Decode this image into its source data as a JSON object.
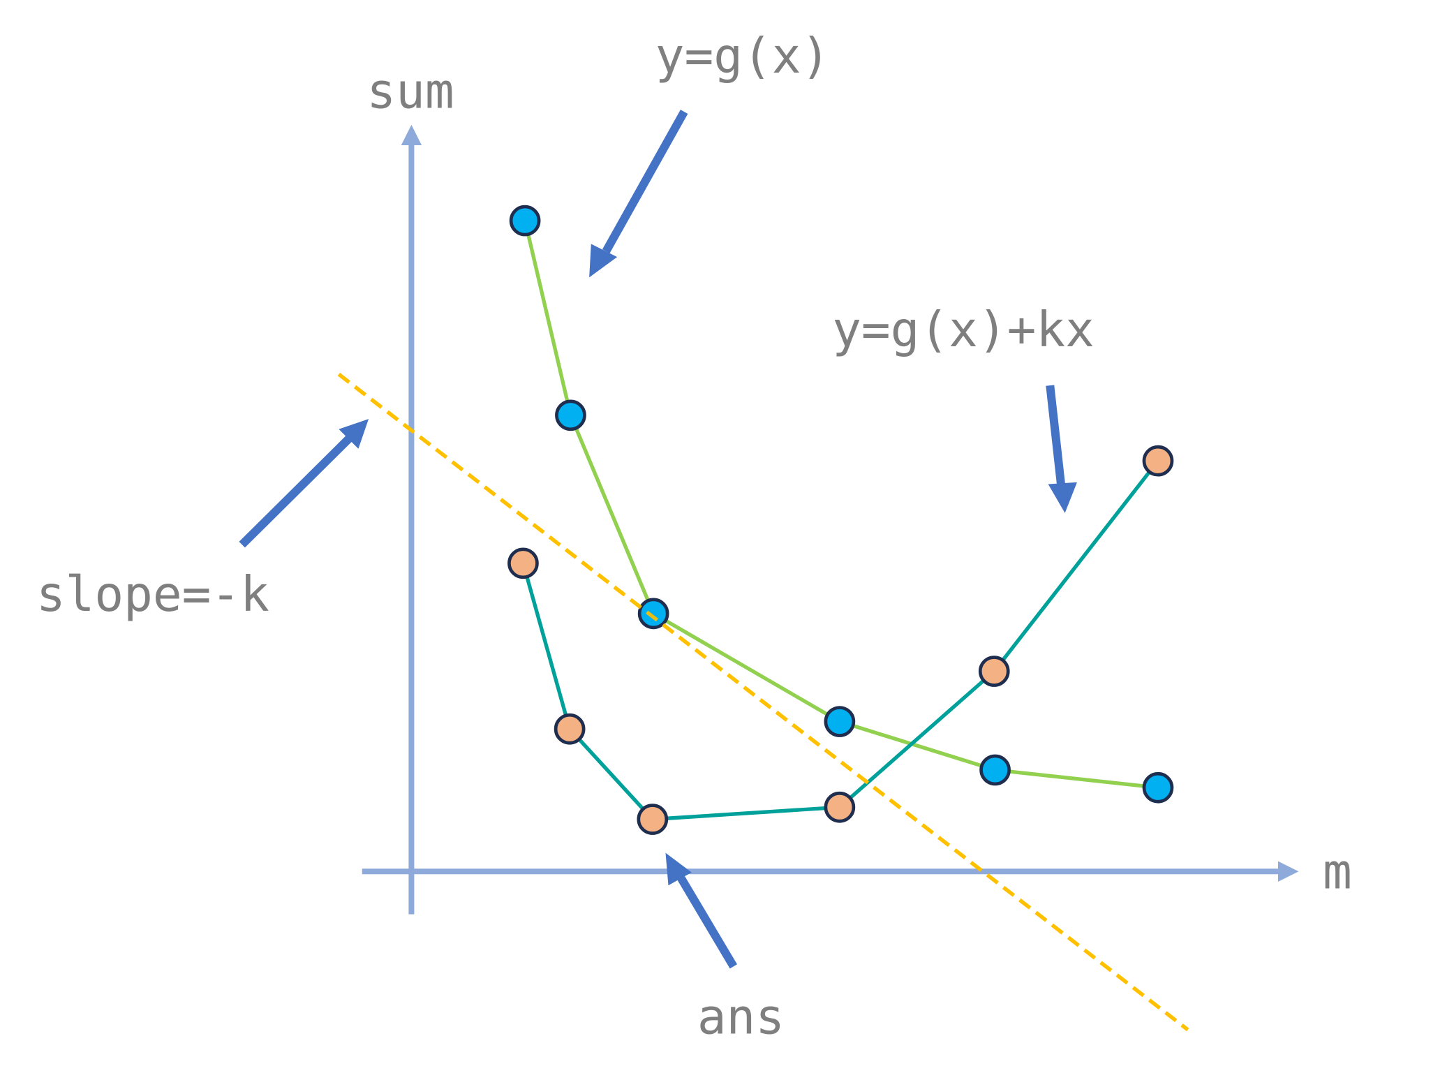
{
  "labels": {
    "y_axis": "sum",
    "x_axis": "m",
    "curve_g": "y=g(x)",
    "curve_gkx": "y=g(x)+kx",
    "slope": "slope=-k",
    "answer": "ans"
  },
  "colors": {
    "axis": "#8eaadb",
    "arrow": "#4472c4",
    "g_line": "#92d050",
    "g_point": "#00b0f0",
    "gkx_line": "#00a19a",
    "gkx_point": "#f4b183",
    "point_stroke": "#1f2d4f",
    "dashed": "#ffc000",
    "text": "#7f7f7f"
  },
  "chart_data": {
    "type": "line",
    "xlabel": "m",
    "ylabel": "sum",
    "series": [
      {
        "name": "y=g(x)",
        "x": [
          1.22,
          1.71,
          2.6,
          4.6,
          6.27,
          8.02
        ],
        "y": [
          6.99,
          4.9,
          2.77,
          1.61,
          1.09,
          0.9
        ]
      },
      {
        "name": "y=g(x)+kx",
        "x": [
          1.2,
          1.7,
          2.59,
          4.6,
          6.26,
          8.02
        ],
        "y": [
          3.31,
          1.53,
          0.56,
          0.69,
          2.15,
          4.41
        ]
      }
    ],
    "dashed_line": {
      "name": "slope=-k",
      "x": [
        -0.78,
        8.34
      ],
      "y": [
        5.34,
        -1.7
      ]
    },
    "annotation_min": "ans"
  }
}
